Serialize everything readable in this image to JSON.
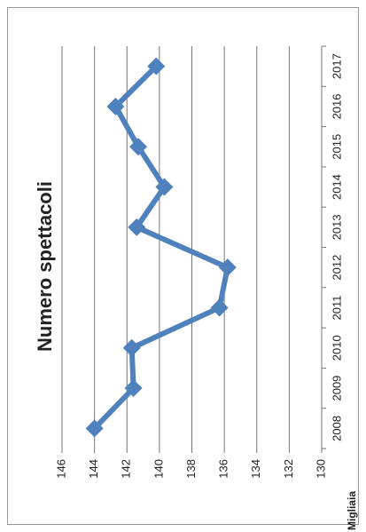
{
  "chart_data": {
    "type": "line",
    "title": "Numero spettacoli",
    "y_axis_label": "Migliaia",
    "categories": [
      "2008",
      "2009",
      "2010",
      "2011",
      "2012",
      "2013",
      "2014",
      "2015",
      "2016",
      "2017"
    ],
    "values": [
      144.0,
      141.6,
      141.7,
      136.3,
      135.8,
      141.4,
      139.7,
      141.3,
      142.7,
      140.2
    ],
    "color": "#4f81bd",
    "ylim": [
      130,
      146
    ],
    "yticks": [
      130,
      132,
      134,
      136,
      138,
      140,
      142,
      144,
      146
    ],
    "grid": true
  }
}
